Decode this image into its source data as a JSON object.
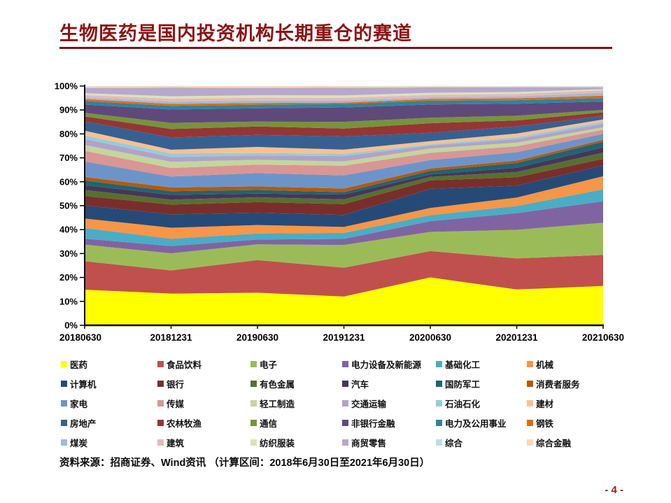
{
  "page": {
    "title": "生物医药是国内投资机构长期重仓的赛道",
    "title_color": "#8B1414",
    "rule_color": "#7E1414",
    "source_note": "资料来源：招商证券、Wind资讯  （计算区间：2018年6月30日至2021年6月30日）",
    "page_number": "- 4 -",
    "page_number_color": "#9E1C1C"
  },
  "chart_data": {
    "type": "area",
    "stacked": true,
    "normalized_to_100_percent": true,
    "title": "",
    "xlabel": "",
    "ylabel": "",
    "ylim": [
      0,
      100
    ],
    "grid": false,
    "legend_position": "bottom",
    "x_labels": [
      "20180630",
      "20181231",
      "20190630",
      "20191231",
      "20200630",
      "20201231",
      "20210630"
    ],
    "y_tick_labels": [
      "0%",
      "10%",
      "20%",
      "30%",
      "40%",
      "50%",
      "60%",
      "70%",
      "80%",
      "90%",
      "100%"
    ],
    "series": [
      {
        "name": "医药",
        "color": "#FFFF00",
        "values": [
          15,
          13,
          13.5,
          12,
          20,
          15,
          16.5
        ]
      },
      {
        "name": "食品饮料",
        "color": "#C0504D",
        "values": [
          12,
          9.5,
          13.5,
          12,
          11,
          13,
          13
        ]
      },
      {
        "name": "电子",
        "color": "#9BBB59",
        "values": [
          7,
          7,
          6.5,
          9.5,
          8,
          12,
          13.5
        ]
      },
      {
        "name": "电力设备及新能源",
        "color": "#8064A2",
        "values": [
          2.5,
          3,
          2,
          2.5,
          4.5,
          7,
          9
        ]
      },
      {
        "name": "基础化工",
        "color": "#4BACC6",
        "values": [
          4.5,
          3,
          2.5,
          2.5,
          2.5,
          3,
          5
        ]
      },
      {
        "name": "机械",
        "color": "#F79646",
        "values": [
          4,
          4.5,
          3.5,
          2.5,
          3,
          3.5,
          5.5
        ]
      },
      {
        "name": "计算机",
        "color": "#264A77",
        "values": [
          5.5,
          5.5,
          5,
          5,
          8,
          5,
          4.5
        ]
      },
      {
        "name": "银行",
        "color": "#7A2E2B",
        "values": [
          4,
          4,
          4.5,
          4.5,
          3.5,
          3.5,
          2.8
        ]
      },
      {
        "name": "有色金属",
        "color": "#57702E",
        "values": [
          2.5,
          2,
          2,
          2,
          1.5,
          2.2,
          2.6
        ]
      },
      {
        "name": "汽车",
        "color": "#46365A",
        "values": [
          2,
          2,
          1.5,
          2,
          1,
          1.8,
          2.2
        ]
      },
      {
        "name": "国防军工",
        "color": "#206472",
        "values": [
          2,
          1.5,
          1.5,
          1,
          1.5,
          2,
          2.4
        ]
      },
      {
        "name": "消费者服务",
        "color": "#B45A0B",
        "values": [
          1.5,
          1.5,
          1.5,
          1.5,
          1,
          1,
          0.8
        ]
      },
      {
        "name": "家电",
        "color": "#6D94C9",
        "values": [
          6.5,
          4.5,
          5.5,
          5.5,
          3.5,
          3.5,
          2.5
        ]
      },
      {
        "name": "传媒",
        "color": "#D99694",
        "values": [
          4.5,
          3.5,
          3.5,
          4,
          3,
          2.5,
          1.7
        ]
      },
      {
        "name": "轻工制造",
        "color": "#C3D69B",
        "values": [
          2.5,
          2.5,
          2,
          1.8,
          1.8,
          1.5,
          1
        ]
      },
      {
        "name": "交通运输",
        "color": "#B2A2C7",
        "values": [
          2.5,
          2,
          1.8,
          2.2,
          1.3,
          1.5,
          1.5
        ]
      },
      {
        "name": "石油石化",
        "color": "#92CDDC",
        "values": [
          1.5,
          1.5,
          1,
          1,
          0.5,
          0.8,
          0.8
        ]
      },
      {
        "name": "建材",
        "color": "#FAC08F",
        "values": [
          2,
          1.5,
          2.5,
          1.7,
          1.3,
          1.5,
          1
        ]
      },
      {
        "name": "房地产",
        "color": "#376092",
        "values": [
          4,
          5,
          5,
          5.5,
          3.5,
          3,
          1.5
        ]
      },
      {
        "name": "农林牧渔",
        "color": "#943634",
        "values": [
          2,
          3.5,
          3.5,
          3.3,
          4,
          2.5,
          1.5
        ]
      },
      {
        "name": "通信",
        "color": "#77933C",
        "values": [
          1.5,
          2.5,
          2,
          2.8,
          2.3,
          2,
          1
        ]
      },
      {
        "name": "非银行金融",
        "color": "#5F497A",
        "values": [
          3.5,
          5.5,
          5.5,
          6,
          5.5,
          5,
          3.5
        ]
      },
      {
        "name": "电力及公用事业",
        "color": "#31849B",
        "values": [
          1.5,
          1.5,
          1.5,
          1.5,
          1.6,
          1.5,
          1.5
        ]
      },
      {
        "name": "钢铁",
        "color": "#E36C09",
        "values": [
          0.8,
          0.8,
          0.7,
          0.5,
          0.7,
          0.8,
          1
        ]
      },
      {
        "name": "煤炭",
        "color": "#9FB9DC",
        "values": [
          0.7,
          0.9,
          1,
          0.9,
          0.7,
          0.8,
          1.2
        ]
      },
      {
        "name": "建筑",
        "color": "#E5B9B7",
        "values": [
          1,
          1.2,
          1.2,
          1.1,
          1,
          1,
          1
        ]
      },
      {
        "name": "纺织服装",
        "color": "#D7E4BD",
        "values": [
          0.8,
          1,
          1,
          1,
          0.9,
          0.8,
          0.5
        ]
      },
      {
        "name": "商贸零售",
        "color": "#B7A8CC",
        "values": [
          2.2,
          3.5,
          3,
          3.2,
          2.2,
          2,
          0.8
        ]
      },
      {
        "name": "综合",
        "color": "#B7DEE8",
        "values": [
          0.3,
          0.4,
          0.3,
          0.3,
          0.3,
          0.3,
          0.3
        ]
      },
      {
        "name": "综合金融",
        "color": "#FCD5B5",
        "values": [
          0.5,
          0.3,
          0.5,
          0.4,
          0.3,
          0.2,
          0.2
        ]
      }
    ],
    "axis_color": "#000000",
    "tick_label_color": "#000000"
  }
}
